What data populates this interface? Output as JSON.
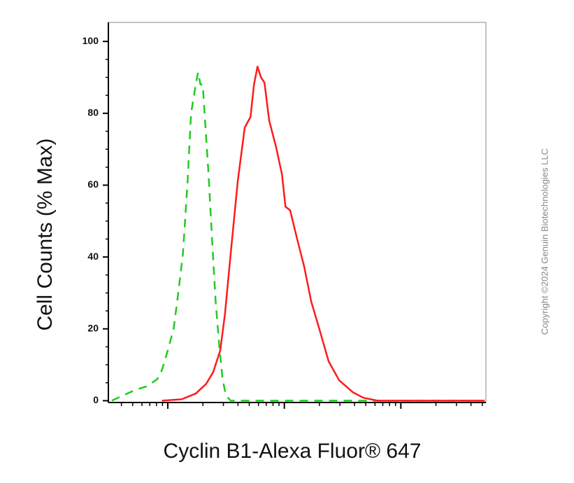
{
  "chart_data": {
    "type": "line",
    "x_title": "Cyclin B1-Alexa Fluor® 647",
    "y_title": "Cell Counts (% Max)",
    "copyright": "Copyright ©2024 Genuin Biotechnologies LLC",
    "log_x": true,
    "xlim": [
      0.49,
      3.73
    ],
    "xticks": [
      1,
      2,
      3
    ],
    "ylim": [
      -0.5,
      105.3
    ],
    "yticks": [
      0,
      20,
      40,
      60,
      80,
      100
    ],
    "series": [
      {
        "color": "#1fcc1f",
        "dashed": true,
        "x": [
          0.52,
          0.61,
          0.73,
          0.82,
          0.91,
          0.95,
          1.0,
          1.05,
          1.09,
          1.13,
          1.17,
          1.2,
          1.24,
          1.26,
          1.28,
          1.3,
          1.32,
          1.35,
          1.38,
          1.41,
          1.44,
          1.47,
          1.5,
          1.54,
          3.72
        ],
        "values": [
          0,
          1.4,
          3.1,
          4,
          6,
          8.6,
          14,
          20,
          30,
          41,
          61,
          80,
          88,
          91.4,
          88,
          88,
          78,
          63,
          45,
          28,
          16,
          6,
          1.4,
          0,
          0
        ]
      },
      {
        "color": "#ff1a1a",
        "dashed": false,
        "x": [
          0.95,
          1.12,
          1.24,
          1.33,
          1.39,
          1.45,
          1.49,
          1.54,
          1.6,
          1.66,
          1.71,
          1.74,
          1.77,
          1.8,
          1.83,
          1.87,
          1.93,
          1.98,
          2.01,
          2.05,
          2.11,
          2.17,
          2.23,
          2.3,
          2.38,
          2.47,
          2.59,
          2.68,
          2.8,
          3.72
        ],
        "values": [
          0,
          0.4,
          2,
          4.7,
          8,
          14,
          24,
          41,
          61,
          76,
          79,
          88,
          93,
          90,
          88.5,
          78,
          70.5,
          63,
          54,
          53,
          45,
          37.4,
          27.7,
          20,
          11,
          5.7,
          2.3,
          0.8,
          0,
          0
        ]
      }
    ]
  }
}
